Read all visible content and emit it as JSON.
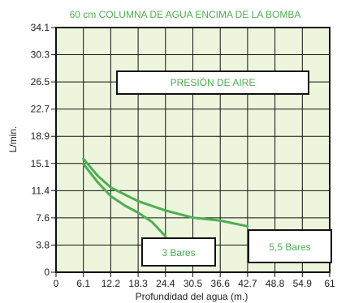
{
  "chart_data": {
    "type": "line",
    "title": "60 cm  COLUMNA DE AGUA ENCIMA DE LA BOMBA",
    "xlabel": "Profundidad del agua (m.)",
    "ylabel": "L/min.",
    "x_ticks": [
      "0",
      "6.1",
      "12.2",
      "18.3",
      "24.4",
      "30.5",
      "36.6",
      "42.7",
      "48.8",
      "54.9",
      "61"
    ],
    "y_ticks": [
      "34.1",
      "30.3",
      "26.5",
      "22.7",
      "18.9",
      "15.1",
      "11.4",
      "7.6",
      "3.8",
      "0"
    ],
    "xlim": [
      0,
      61
    ],
    "ylim": [
      0,
      34.1
    ],
    "grid": true,
    "annotation": "PRESIÓN DE AIRE",
    "series": [
      {
        "name": "3 Bares",
        "color": "#4caf50",
        "x": [
          6.1,
          9.2,
          12.2,
          15.3,
          18.3,
          21.4,
          24.4
        ],
        "y": [
          15.1,
          12.6,
          10.6,
          9.3,
          8.3,
          7.0,
          5.0
        ]
      },
      {
        "name": "5,5 Bares",
        "color": "#4caf50",
        "x": [
          6.1,
          9.2,
          12.2,
          18.3,
          24.4,
          30.5,
          36.6,
          42.7
        ],
        "y": [
          15.8,
          13.5,
          11.8,
          9.9,
          8.6,
          7.6,
          7.2,
          6.4
        ]
      }
    ]
  }
}
